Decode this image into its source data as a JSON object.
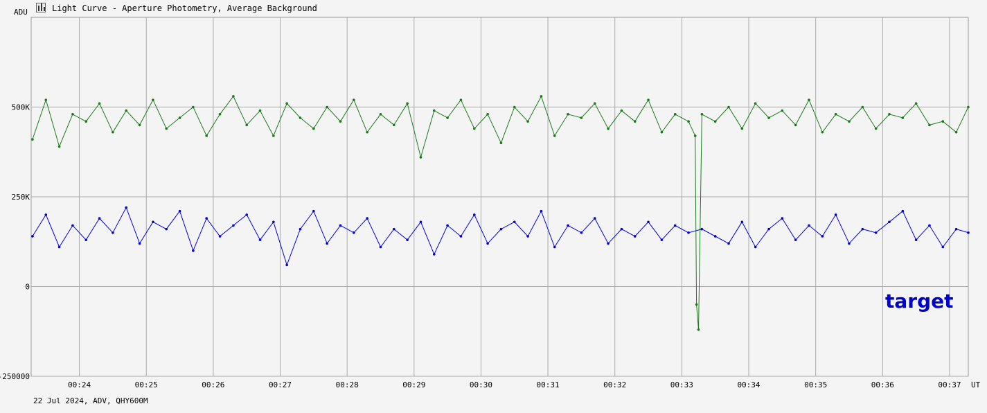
{
  "window": {
    "title": "Light Curve - Aperture Photometry, Average Background",
    "y_axis_unit": "ADU",
    "x_axis_unit": "UT",
    "footer": "22 Jul 2024, ADV, QHY600M",
    "target_label": "target"
  },
  "chart_data": {
    "type": "line",
    "title": "Light Curve - Aperture Photometry, Average Background",
    "xlabel": "UT",
    "ylabel": "ADU",
    "xlim_minutes": [
      23.28,
      37.28
    ],
    "ylim": [
      -250000,
      750000
    ],
    "y_ticks": [
      {
        "value": 500000,
        "label": "500K"
      },
      {
        "value": 250000,
        "label": "250K"
      },
      {
        "value": 0,
        "label": "0"
      },
      {
        "value": -250000,
        "label": "-250000"
      }
    ],
    "x_ticks": [
      {
        "value": 24,
        "label": "00:24"
      },
      {
        "value": 25,
        "label": "00:25"
      },
      {
        "value": 26,
        "label": "00:26"
      },
      {
        "value": 27,
        "label": "00:27"
      },
      {
        "value": 28,
        "label": "00:28"
      },
      {
        "value": 29,
        "label": "00:29"
      },
      {
        "value": 30,
        "label": "00:30"
      },
      {
        "value": 31,
        "label": "00:31"
      },
      {
        "value": 32,
        "label": "00:32"
      },
      {
        "value": 33,
        "label": "00:33"
      },
      {
        "value": 34,
        "label": "00:34"
      },
      {
        "value": 35,
        "label": "00:35"
      },
      {
        "value": 36,
        "label": "00:36"
      },
      {
        "value": 37,
        "label": "00:37"
      }
    ],
    "grid": true,
    "series": [
      {
        "name": "",
        "color": "#1a7a1a",
        "x": [
          23.3,
          23.5,
          23.7,
          23.9,
          24.1,
          24.3,
          24.5,
          24.7,
          24.9,
          25.1,
          25.3,
          25.5,
          25.7,
          25.9,
          26.1,
          26.3,
          26.5,
          26.7,
          26.9,
          27.1,
          27.3,
          27.5,
          27.7,
          27.9,
          28.1,
          28.3,
          28.5,
          28.7,
          28.9,
          29.1,
          29.3,
          29.5,
          29.7,
          29.9,
          30.1,
          30.3,
          30.5,
          30.7,
          30.9,
          31.1,
          31.3,
          31.5,
          31.7,
          31.9,
          32.1,
          32.3,
          32.5,
          32.7,
          32.9,
          33.1,
          33.2,
          33.22,
          33.25,
          33.3,
          33.5,
          33.7,
          33.9,
          34.1,
          34.3,
          34.5,
          34.7,
          34.9,
          35.1,
          35.3,
          35.5,
          35.7,
          35.9,
          36.1,
          36.3,
          36.5,
          36.7,
          36.9,
          37.1,
          37.28
        ],
        "y": [
          410000,
          520000,
          390000,
          480000,
          460000,
          510000,
          430000,
          490000,
          450000,
          520000,
          440000,
          470000,
          500000,
          420000,
          480000,
          530000,
          450000,
          490000,
          420000,
          510000,
          470000,
          440000,
          500000,
          460000,
          520000,
          430000,
          480000,
          450000,
          510000,
          360000,
          490000,
          470000,
          520000,
          440000,
          480000,
          400000,
          500000,
          460000,
          530000,
          420000,
          480000,
          470000,
          510000,
          440000,
          490000,
          460000,
          520000,
          430000,
          480000,
          460000,
          420000,
          -50000,
          -120000,
          480000,
          460000,
          500000,
          440000,
          510000,
          470000,
          490000,
          450000,
          520000,
          430000,
          480000,
          460000,
          500000,
          440000,
          480000,
          470000,
          510000,
          450000,
          460000,
          430000,
          500000
        ]
      },
      {
        "name": "",
        "color": "#0000dd",
        "x": [
          23.3,
          23.5,
          23.7,
          23.9,
          24.1,
          24.3,
          24.5,
          24.7,
          24.9,
          25.1,
          25.3,
          25.5,
          25.7,
          25.9,
          26.1,
          26.3,
          26.5,
          26.7,
          26.9,
          27.1,
          27.3,
          27.5,
          27.7,
          27.9,
          28.1,
          28.3,
          28.5,
          28.7,
          28.9,
          29.1,
          29.3,
          29.5,
          29.7,
          29.9,
          30.1,
          30.3,
          30.5,
          30.7,
          30.9,
          31.1,
          31.3,
          31.5,
          31.7,
          31.9,
          32.1,
          32.3,
          32.5,
          32.7,
          32.9,
          33.1,
          33.3,
          33.5,
          33.7,
          33.9,
          34.1,
          34.3,
          34.5,
          34.7,
          34.9,
          35.1,
          35.3,
          35.5,
          35.7,
          35.9,
          36.1,
          36.3,
          36.5,
          36.7,
          36.9,
          37.1,
          37.28
        ],
        "y": [
          140000,
          200000,
          110000,
          170000,
          130000,
          190000,
          150000,
          220000,
          120000,
          180000,
          160000,
          210000,
          100000,
          190000,
          140000,
          170000,
          200000,
          130000,
          180000,
          60000,
          160000,
          210000,
          120000,
          170000,
          150000,
          190000,
          110000,
          160000,
          130000,
          180000,
          90000,
          170000,
          140000,
          200000,
          120000,
          160000,
          180000,
          140000,
          210000,
          110000,
          170000,
          150000,
          190000,
          120000,
          160000,
          140000,
          180000,
          130000,
          170000,
          150000,
          160000,
          140000,
          120000,
          180000,
          110000,
          160000,
          190000,
          130000,
          170000,
          140000,
          200000,
          120000,
          160000,
          150000,
          180000,
          210000,
          130000,
          170000,
          110000,
          160000,
          150000
        ]
      }
    ]
  }
}
